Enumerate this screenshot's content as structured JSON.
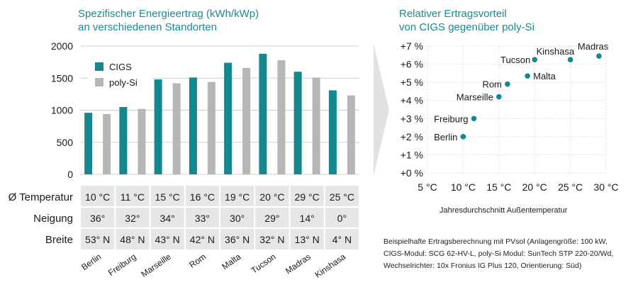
{
  "left": {
    "title_line1": "Spezifischer Energieertrag (kWh/kWp)",
    "title_line2": "an verschiedenen Standorten"
  },
  "right": {
    "title_line1": "Relativer Ertragsvorteil",
    "title_line2": "von CIGS gegenüber poly-Si",
    "xlabel": "Jahresdurchschnitt Außentemperatur",
    "note_lines": [
      "Beispielhafte Ertragsberechnung mit PVsol (Anlagengröße: 100 kW,",
      "CIGS-Modul: SCG 62-HV-L, poly-Si Modul: SunTech STP 220-20/Wd,",
      "Wechselrichter: 10x Fronius IG Plus 120, Orientierung: Süd)"
    ]
  },
  "table": {
    "row_labels": [
      "Ø Temperatur",
      "Neigung",
      "Breite"
    ],
    "temperature": [
      "10 °C",
      "11 °C",
      "15 °C",
      "16 °C",
      "19 °C",
      "20 °C",
      "29 °C",
      "25 °C"
    ],
    "tilt": [
      "36°",
      "32°",
      "34°",
      "33°",
      "30°",
      "29°",
      "14°",
      "0°"
    ],
    "latitude": [
      "53° N",
      "48° N",
      "43° N",
      "42° N",
      "36° N",
      "32° N",
      "13° N",
      "4° N"
    ]
  },
  "colors": {
    "cigs": "#14878f",
    "polysi": "#b6b6b6",
    "title": "#1a8a94",
    "grid": "#d0d0d0",
    "table_bg": "#e6e6e6"
  },
  "chart_data": [
    {
      "type": "bar",
      "categories": [
        "Berlin",
        "Freiburg",
        "Marseille",
        "Rom",
        "Malta",
        "Tucson",
        "Madras",
        "Kinshasa"
      ],
      "series": [
        {
          "name": "CIGS",
          "values": [
            960,
            1050,
            1480,
            1510,
            1740,
            1880,
            1600,
            1310
          ]
        },
        {
          "name": "poly-Si",
          "values": [
            940,
            1020,
            1420,
            1440,
            1660,
            1780,
            1510,
            1230
          ]
        }
      ],
      "yticks": [
        "0",
        "500",
        "1000",
        "1500",
        "2000"
      ],
      "ylim": [
        0,
        2000
      ],
      "legend": "top-left",
      "grid": true
    },
    {
      "type": "scatter",
      "points": [
        {
          "label": "Berlin",
          "x": 10,
          "y": 2.0
        },
        {
          "label": "Freiburg",
          "x": 11.5,
          "y": 3.0
        },
        {
          "label": "Marseille",
          "x": 15,
          "y": 4.2
        },
        {
          "label": "Rom",
          "x": 16.2,
          "y": 4.9
        },
        {
          "label": "Malta",
          "x": 19,
          "y": 5.35
        },
        {
          "label": "Tucson",
          "x": 20,
          "y": 6.25
        },
        {
          "label": "Kinshasa",
          "x": 25,
          "y": 6.25
        },
        {
          "label": "Madras",
          "x": 29,
          "y": 6.45
        }
      ],
      "xticks": [
        "5 °C",
        "10 °C",
        "15 °C",
        "20 °C",
        "25 °C",
        "30 °C"
      ],
      "yticks": [
        "+0 %",
        "+1 %",
        "+2 %",
        "+3 %",
        "+4 %",
        "+5 %",
        "+6 %",
        "+7 %"
      ],
      "xlim": [
        5,
        30
      ],
      "ylim": [
        0,
        7
      ],
      "grid": true,
      "xlabel": "Jahresdurchschnitt Außentemperatur"
    }
  ]
}
